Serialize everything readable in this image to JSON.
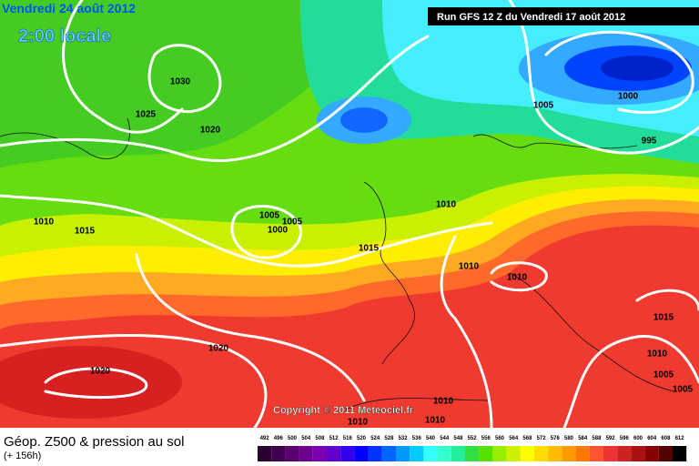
{
  "header": {
    "date": "Vendredi 24 août 2012",
    "time": "2:00 locale",
    "run": "Run GFS 12 Z du Vendredi 17 août 2012"
  },
  "isobar_labels": [
    "1030",
    "1025",
    "1020",
    "1010",
    "1015",
    "1005",
    "1005",
    "1000",
    "1015",
    "1010",
    "1005",
    "1000",
    "995",
    "1010",
    "1010",
    "1015",
    "1010",
    "1005",
    "1005",
    "1020",
    "1020",
    "1010",
    "1010",
    "1010"
  ],
  "copyright": "Copyright © 2011 Meteociel.fr",
  "footer": {
    "title": "Géop. Z500 & pression au sol",
    "lead": "(+ 156h)"
  },
  "legend": {
    "labels": [
      492,
      496,
      500,
      504,
      508,
      512,
      516,
      520,
      524,
      528,
      532,
      536,
      540,
      544,
      548,
      552,
      556,
      560,
      564,
      568,
      572,
      576,
      580,
      584,
      588,
      592,
      596,
      600,
      604,
      608,
      612
    ],
    "colors": [
      "#2a0030",
      "#400050",
      "#5a006e",
      "#6e0090",
      "#7a00b0",
      "#6000d0",
      "#3300ee",
      "#0000ff",
      "#0033ff",
      "#0066ff",
      "#0099ff",
      "#00ccff",
      "#33ffff",
      "#33ffcc",
      "#22ee99",
      "#33dd44",
      "#55e000",
      "#99ee00",
      "#ccf000",
      "#ffff00",
      "#ffdd00",
      "#ffbb00",
      "#ff9900",
      "#ff7700",
      "#ff5533",
      "#ee3333",
      "#cc2222",
      "#aa1111",
      "#880000",
      "#550000",
      "#000000"
    ]
  }
}
